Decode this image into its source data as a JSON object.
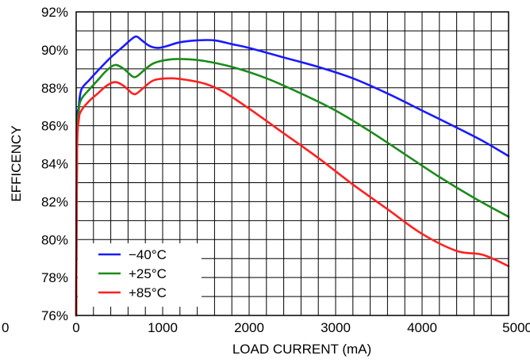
{
  "chart_data": {
    "type": "line",
    "title": "",
    "xlabel": "LOAD CURRENT (mA)",
    "ylabel": "EFFICENCY",
    "xlim": [
      0,
      5000
    ],
    "ylim": [
      76,
      92
    ],
    "x_minor_step": 200,
    "y_minor_step": 1,
    "x_tick_values": [
      0,
      1000,
      2000,
      3000,
      4000,
      5000
    ],
    "x_tick_labels": [
      "0",
      "1000",
      "2000",
      "3000",
      "4000",
      "5000"
    ],
    "x_extra_label": "0",
    "y_tick_values": [
      76,
      78,
      80,
      82,
      84,
      86,
      88,
      90,
      92
    ],
    "y_tick_labels": [
      "76%",
      "78%",
      "80%",
      "82%",
      "84%",
      "86%",
      "88%",
      "90%",
      "92%"
    ],
    "grid": true,
    "legend_position": "bottom-left",
    "series": [
      {
        "name": "−40°C",
        "color": "#1a1aff",
        "points": [
          [
            0,
            76.0
          ],
          [
            10,
            85.5
          ],
          [
            30,
            87.0
          ],
          [
            60,
            87.9
          ],
          [
            150,
            88.4
          ],
          [
            250,
            88.9
          ],
          [
            400,
            89.6
          ],
          [
            550,
            90.2
          ],
          [
            650,
            90.6
          ],
          [
            700,
            90.7
          ],
          [
            760,
            90.5
          ],
          [
            850,
            90.2
          ],
          [
            950,
            90.1
          ],
          [
            1050,
            90.2
          ],
          [
            1200,
            90.4
          ],
          [
            1400,
            90.5
          ],
          [
            1600,
            90.5
          ],
          [
            1800,
            90.3
          ],
          [
            2000,
            90.1
          ],
          [
            2400,
            89.6
          ],
          [
            2800,
            89.1
          ],
          [
            3200,
            88.5
          ],
          [
            3600,
            87.7
          ],
          [
            4000,
            86.8
          ],
          [
            4400,
            85.9
          ],
          [
            4700,
            85.2
          ],
          [
            5000,
            84.4
          ]
        ]
      },
      {
        "name": "+25°C",
        "color": "#1a8c1a",
        "points": [
          [
            0,
            76.0
          ],
          [
            10,
            85.0
          ],
          [
            30,
            86.8
          ],
          [
            60,
            87.4
          ],
          [
            150,
            87.9
          ],
          [
            250,
            88.4
          ],
          [
            350,
            88.9
          ],
          [
            450,
            89.2
          ],
          [
            550,
            89.0
          ],
          [
            650,
            88.6
          ],
          [
            700,
            88.6
          ],
          [
            780,
            88.9
          ],
          [
            900,
            89.3
          ],
          [
            1100,
            89.5
          ],
          [
            1300,
            89.5
          ],
          [
            1500,
            89.4
          ],
          [
            1800,
            89.1
          ],
          [
            2200,
            88.5
          ],
          [
            2600,
            87.7
          ],
          [
            3000,
            86.8
          ],
          [
            3400,
            85.7
          ],
          [
            3800,
            84.5
          ],
          [
            4200,
            83.3
          ],
          [
            4600,
            82.2
          ],
          [
            5000,
            81.2
          ]
        ]
      },
      {
        "name": "+85°C",
        "color": "#ff2020",
        "points": [
          [
            0,
            76.0
          ],
          [
            10,
            84.5
          ],
          [
            30,
            86.3
          ],
          [
            60,
            86.8
          ],
          [
            150,
            87.3
          ],
          [
            250,
            87.7
          ],
          [
            350,
            88.1
          ],
          [
            450,
            88.3
          ],
          [
            550,
            88.1
          ],
          [
            650,
            87.7
          ],
          [
            700,
            87.7
          ],
          [
            780,
            88.0
          ],
          [
            900,
            88.4
          ],
          [
            1100,
            88.5
          ],
          [
            1300,
            88.4
          ],
          [
            1500,
            88.2
          ],
          [
            1700,
            87.8
          ],
          [
            2000,
            86.9
          ],
          [
            2400,
            85.6
          ],
          [
            2800,
            84.3
          ],
          [
            3200,
            82.9
          ],
          [
            3600,
            81.6
          ],
          [
            4000,
            80.3
          ],
          [
            4400,
            79.4
          ],
          [
            4700,
            79.2
          ],
          [
            5000,
            78.6
          ]
        ]
      }
    ]
  }
}
